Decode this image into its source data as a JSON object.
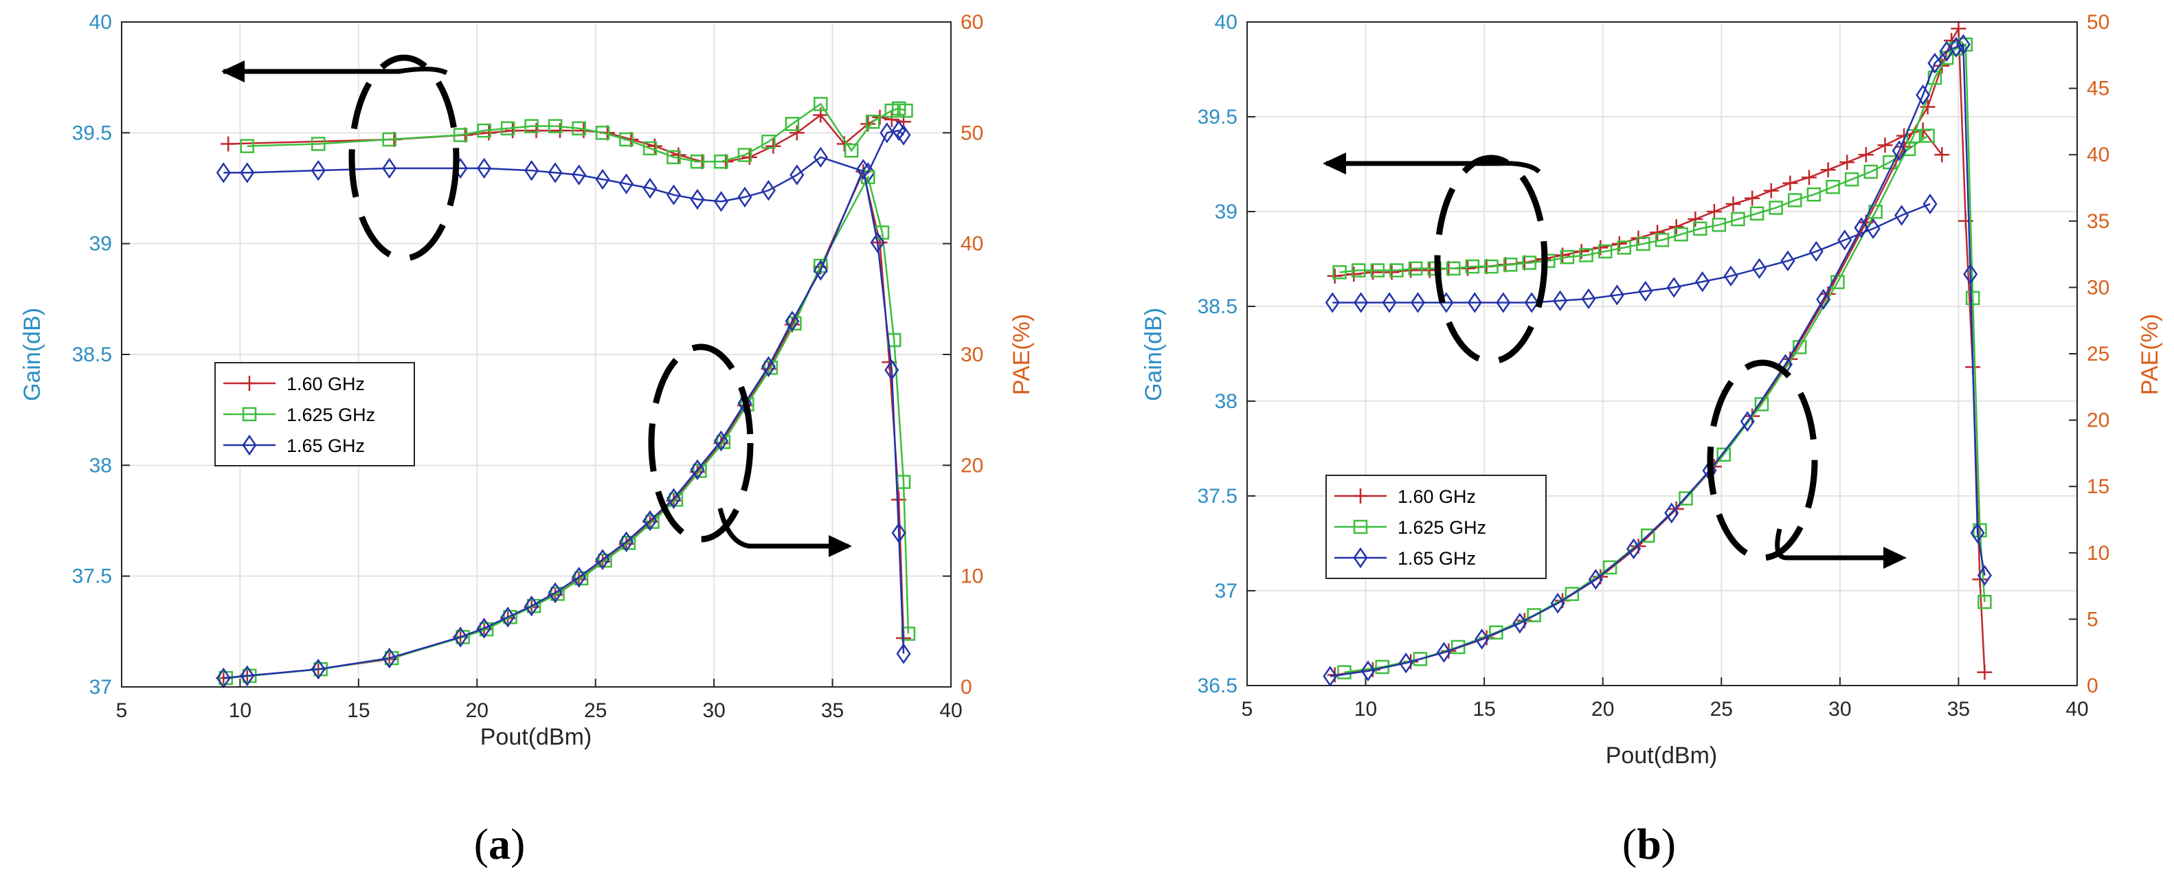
{
  "chart_data": [
    {
      "type": "line",
      "panel_label_prefix": "(",
      "panel_label": "a",
      "panel_label_suffix": ")",
      "xlabel": "Pout(dBm)",
      "ylabel_left": "Gain(dB)",
      "ylabel_right": "PAE(%)",
      "xlim": [
        5,
        40
      ],
      "ylim_left": [
        37,
        40
      ],
      "ylim_right": [
        0,
        60
      ],
      "xticks": [
        5,
        10,
        15,
        20,
        25,
        30,
        35,
        40
      ],
      "yticks_left": [
        37,
        37.5,
        38,
        38.5,
        39,
        39.5,
        40
      ],
      "yticks_right": [
        0,
        10,
        20,
        30,
        40,
        50,
        60
      ],
      "legend": [
        "1.60 GHz",
        "1.625 GHz",
        "1.65 GHz"
      ],
      "series": [
        {
          "name": "1.60 GHz",
          "axis": "left",
          "color": "#c0272d",
          "marker": "plus",
          "x": [
            9.5,
            16.5,
            19.5,
            20.5,
            21.5,
            22.5,
            23.5,
            24.5,
            25.5,
            26.5,
            27.5,
            28.5,
            29.5,
            30.5,
            31.5,
            32.5,
            33.5,
            34.5,
            35.5,
            36.5,
            37.0,
            37.5,
            38.0
          ],
          "y": [
            39.45,
            39.47,
            39.49,
            39.5,
            39.51,
            39.51,
            39.51,
            39.51,
            39.5,
            39.47,
            39.44,
            39.4,
            39.37,
            39.37,
            39.39,
            39.44,
            39.5,
            39.58,
            39.45,
            39.54,
            39.57,
            39.56,
            39.55
          ]
        },
        {
          "name": "1.625 GHz",
          "axis": "left",
          "color": "#3cbe3c",
          "marker": "square",
          "x": [
            10.3,
            13.3,
            16.3,
            19.3,
            20.3,
            21.3,
            22.3,
            23.3,
            24.3,
            25.3,
            26.3,
            27.3,
            28.3,
            29.3,
            30.3,
            31.3,
            32.3,
            33.3,
            34.5,
            35.8,
            36.7,
            37.5,
            37.8,
            38.1
          ],
          "y": [
            39.44,
            39.45,
            39.47,
            39.49,
            39.51,
            39.52,
            39.53,
            39.53,
            39.52,
            39.5,
            39.47,
            39.43,
            39.39,
            39.37,
            39.37,
            39.4,
            39.46,
            39.54,
            39.63,
            39.42,
            39.55,
            39.6,
            39.61,
            39.6
          ]
        },
        {
          "name": "1.65 GHz",
          "axis": "left",
          "color": "#2233aa",
          "marker": "diamond",
          "x": [
            9.3,
            10.3,
            13.3,
            16.3,
            19.3,
            20.3,
            22.3,
            23.3,
            24.3,
            25.3,
            26.3,
            27.3,
            28.3,
            29.3,
            30.3,
            31.3,
            32.3,
            33.5,
            34.5,
            36.5,
            37.3,
            37.8,
            38.0
          ],
          "y": [
            39.32,
            39.32,
            39.33,
            39.34,
            39.34,
            39.34,
            39.33,
            39.32,
            39.31,
            39.29,
            39.27,
            39.25,
            39.22,
            39.2,
            39.19,
            39.21,
            39.24,
            39.31,
            39.39,
            39.32,
            39.5,
            39.51,
            39.49
          ]
        },
        {
          "name": "1.60 GHz",
          "axis": "right",
          "color": "#c0272d",
          "marker": "plus",
          "x": [
            9.3,
            10.3,
            13.3,
            16.3,
            19.3,
            20.3,
            21.3,
            22.3,
            23.3,
            24.3,
            25.3,
            26.3,
            27.3,
            28.3,
            29.3,
            30.3,
            31.3,
            32.3,
            33.3,
            34.5,
            36.3,
            37.0,
            37.4,
            37.8,
            38.0
          ],
          "y": [
            0.8,
            1.0,
            1.6,
            2.5,
            4.5,
            5.2,
            6.2,
            7.2,
            8.3,
            9.7,
            11.3,
            12.9,
            14.9,
            16.8,
            19.4,
            22.0,
            25.4,
            28.7,
            32.7,
            37.9,
            46.5,
            40.1,
            29.3,
            16.9,
            4.4
          ]
        },
        {
          "name": "1.625 GHz",
          "axis": "right",
          "color": "#3cbe3c",
          "marker": "square",
          "x": [
            9.4,
            10.4,
            13.4,
            16.4,
            19.4,
            20.4,
            21.4,
            22.4,
            23.4,
            24.4,
            25.4,
            26.4,
            27.4,
            28.4,
            29.4,
            30.4,
            31.4,
            32.4,
            33.4,
            34.5,
            36.5,
            37.1,
            37.6,
            38.0,
            38.2
          ],
          "y": [
            0.8,
            1.0,
            1.6,
            2.6,
            4.5,
            5.2,
            6.3,
            7.3,
            8.4,
            9.8,
            11.4,
            13.0,
            14.9,
            16.9,
            19.5,
            22.1,
            25.5,
            28.8,
            32.8,
            38.0,
            46.0,
            41.0,
            31.3,
            18.5,
            4.8
          ]
        },
        {
          "name": "1.65 GHz",
          "axis": "right",
          "color": "#2233aa",
          "marker": "diamond",
          "x": [
            9.3,
            10.3,
            13.3,
            16.3,
            19.3,
            20.3,
            21.3,
            22.3,
            23.3,
            24.3,
            25.3,
            26.3,
            27.3,
            28.3,
            29.3,
            30.3,
            31.3,
            32.3,
            33.3,
            34.5,
            36.3,
            36.9,
            37.5,
            37.8,
            38.0
          ],
          "y": [
            0.8,
            1.0,
            1.6,
            2.6,
            4.5,
            5.3,
            6.3,
            7.3,
            8.5,
            9.9,
            11.5,
            13.1,
            15.0,
            17.0,
            19.6,
            22.2,
            25.6,
            28.9,
            33.0,
            37.6,
            46.7,
            40.1,
            28.6,
            13.9,
            3.0
          ]
        }
      ]
    },
    {
      "type": "line",
      "panel_label_prefix": "(",
      "panel_label": "b",
      "panel_label_suffix": ")",
      "xlabel": "Pout(dBm)",
      "ylabel_left": "Gain(dB)",
      "ylabel_right": "PAE(%)",
      "xlim": [
        5,
        40
      ],
      "ylim_left": [
        36.5,
        40
      ],
      "ylim_right": [
        0,
        50
      ],
      "xticks": [
        5,
        10,
        15,
        20,
        25,
        30,
        35,
        40
      ],
      "yticks_left": [
        36.5,
        37,
        37.5,
        38,
        38.5,
        39,
        39.5,
        40
      ],
      "yticks_right": [
        0,
        5,
        10,
        15,
        20,
        25,
        30,
        35,
        40,
        45,
        50
      ],
      "legend": [
        "1.60 GHz",
        "1.625 GHz",
        "1.65 GHz"
      ],
      "series": [
        {
          "name": "1.60 GHz",
          "axis": "left",
          "color": "#c0272d",
          "marker": "plus",
          "x": [
            8.7,
            9.5,
            10.3,
            11.1,
            11.9,
            12.7,
            13.5,
            14.3,
            15.1,
            15.9,
            16.7,
            17.5,
            18.3,
            19.1,
            19.9,
            20.7,
            21.5,
            22.3,
            23.1,
            23.9,
            24.7,
            25.5,
            26.3,
            27.1,
            27.9,
            28.7,
            29.5,
            30.3,
            31.1,
            31.9,
            32.7,
            33.5,
            34.3
          ],
          "y": [
            38.66,
            38.67,
            38.68,
            38.68,
            38.69,
            38.69,
            38.7,
            38.7,
            38.71,
            38.72,
            38.73,
            38.75,
            38.77,
            38.79,
            38.81,
            38.83,
            38.86,
            38.89,
            38.92,
            38.96,
            39.0,
            39.04,
            39.07,
            39.11,
            39.15,
            39.18,
            39.22,
            39.26,
            39.3,
            39.35,
            39.4,
            39.43,
            39.3
          ]
        },
        {
          "name": "1.625 GHz",
          "axis": "left",
          "color": "#3cbe3c",
          "marker": "square",
          "x": [
            8.9,
            9.7,
            10.5,
            11.3,
            12.1,
            12.9,
            13.7,
            14.5,
            15.3,
            16.1,
            16.9,
            17.7,
            18.5,
            19.3,
            20.1,
            20.9,
            21.7,
            22.5,
            23.3,
            24.1,
            24.9,
            25.7,
            26.5,
            27.3,
            28.1,
            28.9,
            29.7,
            30.5,
            31.3,
            32.1,
            32.9,
            33.7
          ],
          "y": [
            38.68,
            38.69,
            38.69,
            38.69,
            38.7,
            38.7,
            38.7,
            38.71,
            38.71,
            38.72,
            38.73,
            38.74,
            38.76,
            38.77,
            38.79,
            38.81,
            38.83,
            38.85,
            38.88,
            38.91,
            38.93,
            38.96,
            38.99,
            39.02,
            39.06,
            39.09,
            39.13,
            39.17,
            39.21,
            39.26,
            39.33,
            39.4
          ]
        },
        {
          "name": "1.65 GHz",
          "axis": "left",
          "color": "#2233aa",
          "marker": "diamond",
          "x": [
            8.6,
            9.8,
            11.0,
            12.2,
            13.4,
            14.6,
            15.8,
            17.0,
            18.2,
            19.4,
            20.6,
            21.8,
            23.0,
            24.2,
            25.4,
            26.6,
            27.8,
            29.0,
            30.2,
            31.4,
            32.6,
            33.8
          ],
          "y": [
            38.52,
            38.52,
            38.52,
            38.52,
            38.52,
            38.52,
            38.52,
            38.52,
            38.53,
            38.54,
            38.56,
            38.58,
            38.6,
            38.63,
            38.66,
            38.7,
            38.74,
            38.79,
            38.85,
            38.91,
            38.98,
            39.04
          ]
        },
        {
          "name": "1.60 GHz",
          "axis": "right",
          "color": "#c0272d",
          "marker": "plus",
          "x": [
            8.7,
            10.3,
            11.9,
            13.5,
            15.1,
            16.7,
            18.3,
            19.9,
            21.5,
            23.1,
            24.7,
            26.3,
            27.9,
            29.5,
            31.1,
            32.7,
            33.7,
            34.3,
            34.7,
            35.0,
            35.3,
            35.6,
            35.9,
            36.1
          ],
          "y": [
            0.8,
            1.2,
            1.8,
            2.6,
            3.6,
            4.9,
            6.4,
            8.2,
            10.5,
            13.3,
            16.5,
            20.3,
            24.6,
            29.5,
            34.9,
            40.6,
            43.6,
            46.7,
            48.6,
            49.5,
            35.0,
            24.0,
            8.0,
            1.0
          ]
        },
        {
          "name": "1.625 GHz",
          "axis": "right",
          "color": "#3cbe3c",
          "marker": "square",
          "x": [
            9.1,
            10.7,
            12.3,
            13.9,
            15.5,
            17.1,
            18.7,
            20.3,
            21.9,
            23.5,
            25.1,
            26.7,
            28.3,
            29.9,
            31.5,
            33.1,
            34.0,
            34.5,
            34.9,
            35.3,
            35.6,
            35.9,
            36.1
          ],
          "y": [
            1.0,
            1.4,
            2.0,
            2.9,
            4.0,
            5.3,
            6.9,
            8.9,
            11.3,
            14.1,
            17.4,
            21.2,
            25.5,
            30.4,
            35.7,
            41.4,
            45.8,
            47.3,
            48.0,
            48.3,
            29.2,
            11.7,
            6.3
          ]
        },
        {
          "name": "1.65 GHz",
          "axis": "right",
          "color": "#2233aa",
          "marker": "diamond",
          "x": [
            8.5,
            10.1,
            11.7,
            13.3,
            14.9,
            16.5,
            18.1,
            19.7,
            21.3,
            22.9,
            24.5,
            26.1,
            27.7,
            29.3,
            30.9,
            32.5,
            33.5,
            34.0,
            34.5,
            34.9,
            35.2,
            35.5,
            35.8,
            36.1
          ],
          "y": [
            0.7,
            1.1,
            1.7,
            2.5,
            3.5,
            4.7,
            6.2,
            8.0,
            10.3,
            13.0,
            16.2,
            19.9,
            24.2,
            29.1,
            34.5,
            40.3,
            44.5,
            46.9,
            47.8,
            48.1,
            48.3,
            31.0,
            11.5,
            8.3
          ]
        }
      ]
    }
  ]
}
